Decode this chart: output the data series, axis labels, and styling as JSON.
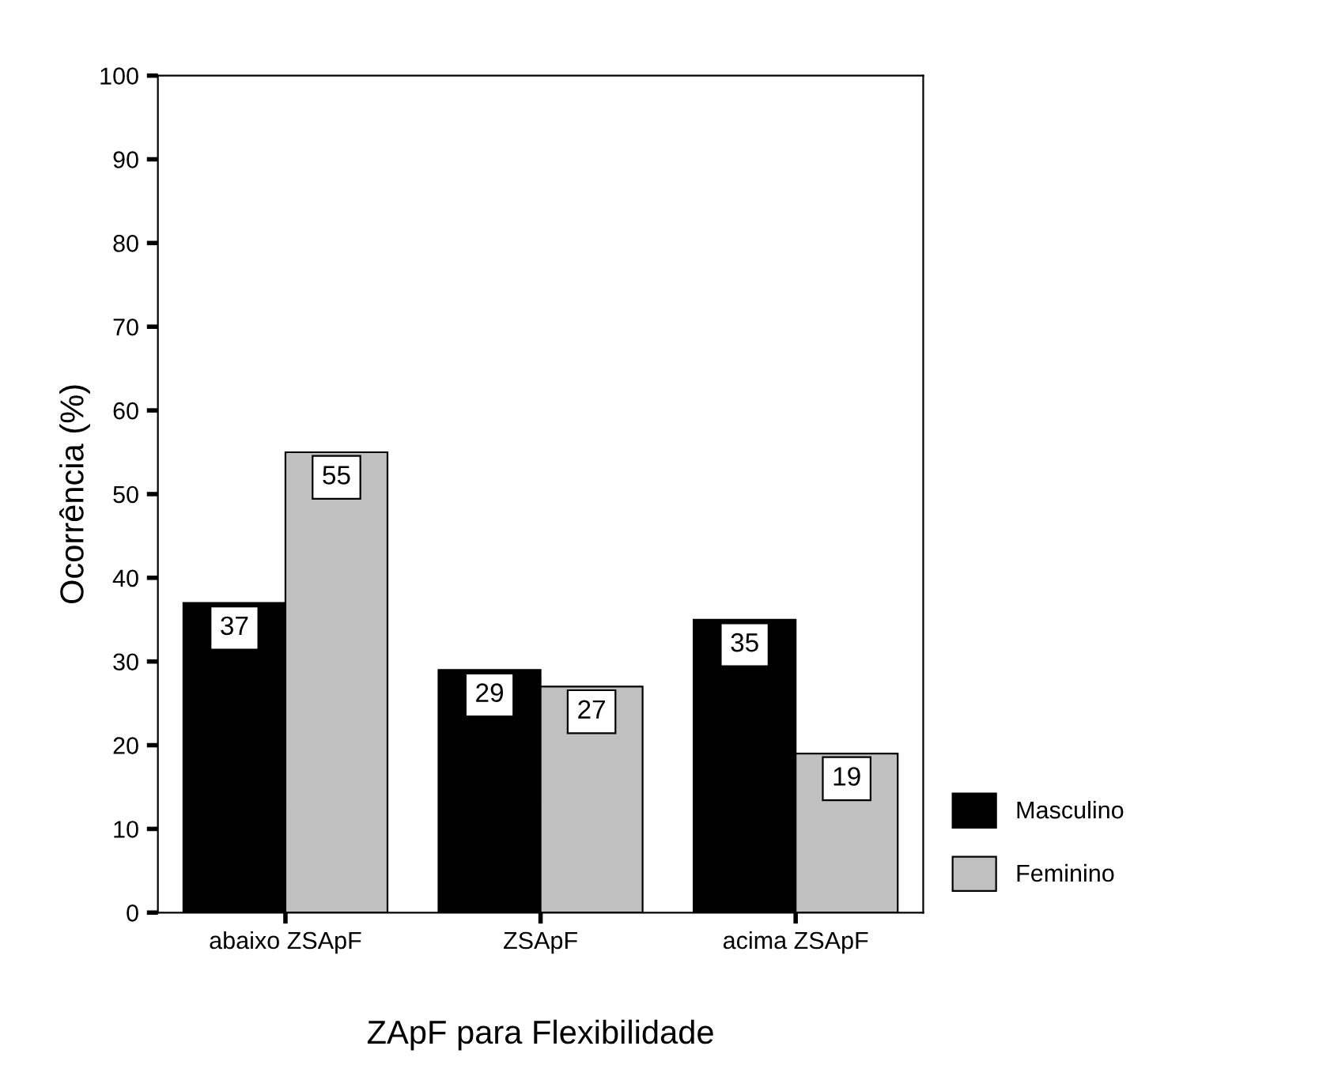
{
  "chart_data": {
    "type": "bar",
    "xlabel": "ZApF para Flexibilidade",
    "ylabel": "Ocorrência (%)",
    "categories": [
      "abaixo ZSApF",
      "ZSApF",
      "acima ZSApF"
    ],
    "series": [
      {
        "name": "Masculino",
        "color": "#000000",
        "values": [
          37,
          29,
          35
        ]
      },
      {
        "name": "Feminino",
        "color": "#c0c0c0",
        "values": [
          55,
          27,
          19
        ]
      }
    ],
    "ylim": [
      0,
      100
    ],
    "yticks": [
      0,
      10,
      20,
      30,
      40,
      50,
      60,
      70,
      80,
      90,
      100
    ],
    "grid": false,
    "legend": "right",
    "data_labels": true
  }
}
